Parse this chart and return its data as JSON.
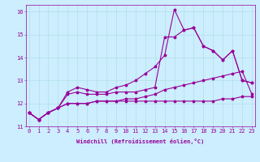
{
  "xlabel": "Windchill (Refroidissement éolien,°C)",
  "ylabel": "",
  "bg_color": "#cceeff",
  "line_color": "#990099",
  "grid_color": "#aadddd",
  "x_ticks": [
    0,
    1,
    2,
    3,
    4,
    5,
    6,
    7,
    8,
    9,
    10,
    11,
    12,
    13,
    14,
    15,
    16,
    17,
    18,
    19,
    20,
    21,
    22,
    23
  ],
  "ylim": [
    11.0,
    16.3
  ],
  "xlim": [
    -0.3,
    23.3
  ],
  "yticks": [
    11,
    12,
    13,
    14,
    15,
    16
  ],
  "series": [
    [
      11.6,
      11.3,
      11.6,
      11.8,
      12.5,
      12.7,
      12.6,
      12.5,
      12.5,
      12.7,
      12.8,
      13.0,
      13.3,
      13.6,
      14.1,
      16.1,
      15.2,
      15.3,
      14.5,
      14.3,
      13.9,
      14.3,
      13.0,
      12.9
    ],
    [
      11.6,
      11.3,
      11.6,
      11.8,
      12.4,
      12.5,
      12.4,
      12.4,
      12.4,
      12.5,
      12.5,
      12.5,
      12.6,
      12.7,
      14.9,
      14.9,
      15.2,
      15.3,
      14.5,
      14.3,
      13.9,
      14.3,
      13.0,
      12.9
    ],
    [
      11.6,
      11.3,
      11.6,
      11.8,
      12.0,
      12.0,
      12.0,
      12.1,
      12.1,
      12.1,
      12.1,
      12.1,
      12.1,
      12.1,
      12.1,
      12.1,
      12.1,
      12.1,
      12.1,
      12.1,
      12.2,
      12.2,
      12.3,
      12.3
    ],
    [
      11.6,
      11.3,
      11.6,
      11.8,
      12.0,
      12.0,
      12.0,
      12.1,
      12.1,
      12.1,
      12.2,
      12.2,
      12.3,
      12.4,
      12.6,
      12.7,
      12.8,
      12.9,
      13.0,
      13.1,
      13.2,
      13.3,
      13.4,
      12.4
    ]
  ],
  "tick_fontsize": 5,
  "xlabel_fontsize": 5,
  "linewidth": 0.8,
  "markersize": 2.5
}
